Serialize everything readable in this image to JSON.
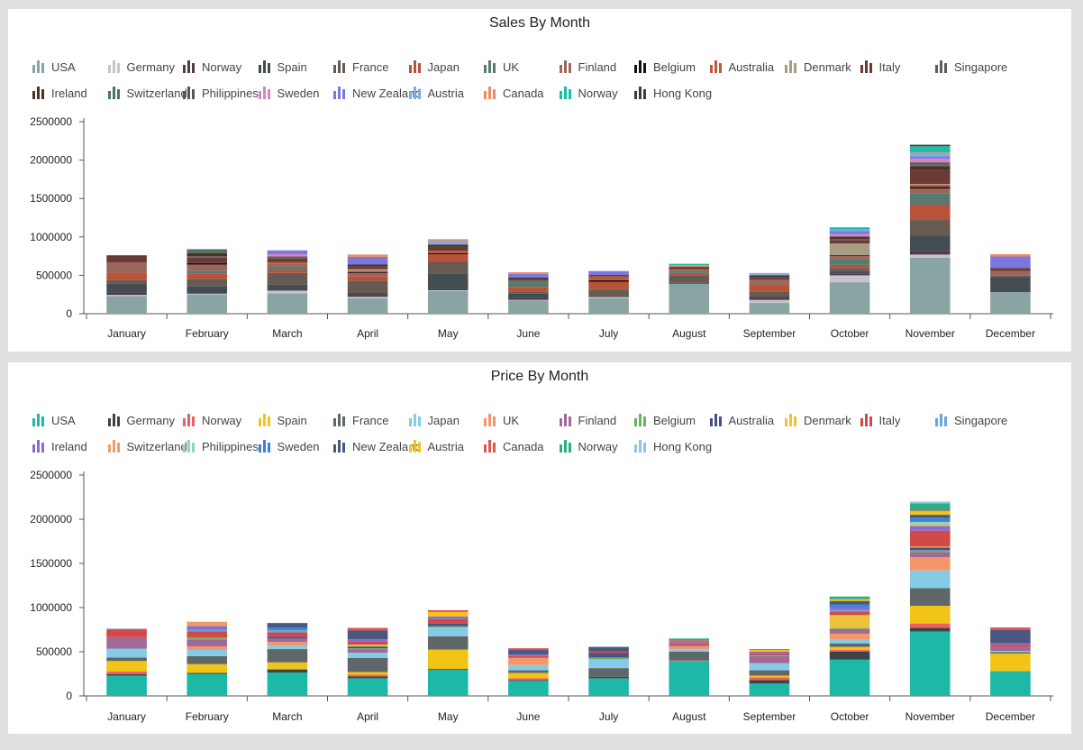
{
  "chart_data": [
    {
      "type": "bar",
      "stacked": true,
      "title": "Sales By Month",
      "xlabel": "",
      "ylabel": "",
      "ylim": [
        0,
        2500000
      ],
      "yticks": [
        "0",
        "500000",
        "1000000",
        "1500000",
        "2000000",
        "2500000"
      ],
      "grid": false,
      "legend": "top",
      "categories": [
        "January",
        "February",
        "March",
        "April",
        "May",
        "June",
        "July",
        "August",
        "September",
        "October",
        "November",
        "December"
      ],
      "series": [
        {
          "name": "USA",
          "color": "#8aa4a4",
          "values": [
            230000,
            250000,
            265000,
            200000,
            295000,
            170000,
            200000,
            390000,
            140000,
            410000,
            730000,
            280000
          ]
        },
        {
          "name": "Germany",
          "color": "#c9c2cc",
          "values": [
            15000,
            10000,
            35000,
            20000,
            10000,
            10000,
            15000,
            0,
            40000,
            90000,
            40000,
            0
          ]
        },
        {
          "name": "Norway",
          "color": "#4f3a48",
          "values": [
            30000,
            0,
            0,
            20000,
            0,
            20000,
            0,
            10000,
            30000,
            20000,
            50000,
            0
          ]
        },
        {
          "name": "Spain",
          "color": "#434d51",
          "values": [
            120000,
            100000,
            80000,
            30000,
            220000,
            60000,
            0,
            0,
            20000,
            35000,
            200000,
            200000
          ]
        },
        {
          "name": "France",
          "color": "#655b53",
          "values": [
            40000,
            90000,
            150000,
            160000,
            150000,
            30000,
            100000,
            100000,
            60000,
            40000,
            200000,
            15000
          ]
        },
        {
          "name": "Japan",
          "color": "#b9523b",
          "values": [
            100000,
            70000,
            40000,
            60000,
            100000,
            60000,
            100000,
            30000,
            80000,
            40000,
            200000,
            15000
          ]
        },
        {
          "name": "UK",
          "color": "#567a72",
          "values": [
            0,
            40000,
            40000,
            0,
            0,
            80000,
            0,
            30000,
            0,
            70000,
            150000,
            0
          ]
        },
        {
          "name": "Finland",
          "color": "#99685a",
          "values": [
            130000,
            80000,
            40000,
            40000,
            0,
            0,
            0,
            20000,
            80000,
            50000,
            60000,
            45000
          ]
        },
        {
          "name": "Belgium",
          "color": "#111111",
          "values": [
            0,
            20000,
            0,
            10000,
            15000,
            0,
            20000,
            0,
            10000,
            10000,
            20000,
            0
          ]
        },
        {
          "name": "Australia",
          "color": "#bc5a3a",
          "values": [
            0,
            0,
            20000,
            20000,
            30000,
            0,
            50000,
            0,
            0,
            0,
            30000,
            0
          ]
        },
        {
          "name": "Denmark",
          "color": "#a99c85",
          "values": [
            0,
            0,
            0,
            20000,
            0,
            0,
            0,
            0,
            0,
            150000,
            10000,
            0
          ]
        },
        {
          "name": "Italy",
          "color": "#6b3a34",
          "values": [
            80000,
            70000,
            50000,
            40000,
            50000,
            20000,
            20000,
            20000,
            20000,
            40000,
            180000,
            25000
          ]
        },
        {
          "name": "Singapore",
          "color": "#635c59",
          "values": [
            0,
            20000,
            25000,
            0,
            0,
            0,
            0,
            0,
            0,
            20000,
            0,
            0
          ]
        },
        {
          "name": "Ireland",
          "color": "#4b3026",
          "values": [
            15000,
            40000,
            0,
            20000,
            30000,
            20000,
            0,
            10000,
            20000,
            30000,
            50000,
            15000
          ]
        },
        {
          "name": "Switzerland",
          "color": "#4f7365",
          "values": [
            0,
            50000,
            0,
            0,
            0,
            0,
            0,
            0,
            0,
            0,
            20000,
            0
          ]
        },
        {
          "name": "Philippines",
          "color": "#5d5449",
          "values": [
            0,
            0,
            0,
            0,
            0,
            0,
            0,
            0,
            0,
            0,
            30000,
            0
          ]
        },
        {
          "name": "Sweden",
          "color": "#d685c2",
          "values": [
            0,
            0,
            30000,
            0,
            0,
            0,
            0,
            0,
            0,
            30000,
            50000,
            0
          ]
        },
        {
          "name": "New Zealand",
          "color": "#7a78e0",
          "values": [
            0,
            0,
            50000,
            100000,
            0,
            50000,
            50000,
            0,
            0,
            40000,
            30000,
            150000
          ]
        },
        {
          "name": "Austria",
          "color": "#78aee0",
          "values": [
            0,
            0,
            0,
            0,
            50000,
            0,
            0,
            0,
            20000,
            20000,
            40000,
            0
          ]
        },
        {
          "name": "Canada",
          "color": "#ef8a62",
          "values": [
            0,
            0,
            0,
            30000,
            20000,
            20000,
            0,
            20000,
            10000,
            0,
            10000,
            30000
          ]
        },
        {
          "name": "Norway",
          "color": "#19bfa8",
          "values": [
            0,
            0,
            0,
            0,
            0,
            0,
            0,
            20000,
            0,
            30000,
            80000,
            0
          ]
        },
        {
          "name": "Hong Kong",
          "color": "#3c3c3c",
          "values": [
            0,
            0,
            0,
            0,
            0,
            0,
            0,
            0,
            0,
            0,
            20000,
            0
          ]
        }
      ]
    },
    {
      "type": "bar",
      "stacked": true,
      "title": "Price By Month",
      "xlabel": "",
      "ylabel": "",
      "ylim": [
        0,
        2500000
      ],
      "yticks": [
        "0",
        "500000",
        "1000000",
        "1500000",
        "2000000",
        "2500000"
      ],
      "grid": false,
      "legend": "top",
      "categories": [
        "January",
        "February",
        "March",
        "April",
        "May",
        "June",
        "July",
        "August",
        "September",
        "October",
        "November",
        "December"
      ],
      "series": [
        {
          "name": "USA",
          "color": "#1db8a6",
          "values": [
            230000,
            250000,
            265000,
            200000,
            295000,
            170000,
            200000,
            390000,
            140000,
            410000,
            730000,
            280000
          ]
        },
        {
          "name": "Germany",
          "color": "#3d4448",
          "values": [
            15000,
            10000,
            35000,
            20000,
            10000,
            10000,
            15000,
            0,
            40000,
            90000,
            40000,
            0
          ]
        },
        {
          "name": "Norway",
          "color": "#ef5e60",
          "values": [
            30000,
            0,
            0,
            20000,
            0,
            20000,
            0,
            10000,
            30000,
            20000,
            50000,
            0
          ]
        },
        {
          "name": "Spain",
          "color": "#f2c416",
          "values": [
            120000,
            100000,
            80000,
            30000,
            220000,
            60000,
            0,
            0,
            20000,
            35000,
            200000,
            200000
          ]
        },
        {
          "name": "France",
          "color": "#5f6769",
          "values": [
            40000,
            90000,
            150000,
            160000,
            150000,
            30000,
            100000,
            100000,
            60000,
            40000,
            200000,
            15000
          ]
        },
        {
          "name": "Japan",
          "color": "#86cbe6",
          "values": [
            100000,
            70000,
            40000,
            60000,
            100000,
            60000,
            100000,
            30000,
            80000,
            40000,
            200000,
            15000
          ]
        },
        {
          "name": "UK",
          "color": "#f5966a",
          "values": [
            0,
            40000,
            40000,
            0,
            0,
            80000,
            0,
            30000,
            0,
            70000,
            150000,
            0
          ]
        },
        {
          "name": "Finland",
          "color": "#a06998",
          "values": [
            130000,
            80000,
            40000,
            40000,
            0,
            0,
            0,
            20000,
            80000,
            50000,
            60000,
            45000
          ]
        },
        {
          "name": "Belgium",
          "color": "#6eb164",
          "values": [
            0,
            20000,
            0,
            10000,
            15000,
            0,
            20000,
            0,
            10000,
            10000,
            20000,
            0
          ]
        },
        {
          "name": "Australia",
          "color": "#45508c",
          "values": [
            0,
            0,
            20000,
            20000,
            30000,
            0,
            50000,
            0,
            0,
            0,
            30000,
            0
          ]
        },
        {
          "name": "Denmark",
          "color": "#ecc23a",
          "values": [
            0,
            0,
            0,
            20000,
            0,
            0,
            0,
            0,
            0,
            150000,
            10000,
            0
          ]
        },
        {
          "name": "Italy",
          "color": "#d24a47",
          "values": [
            80000,
            70000,
            50000,
            40000,
            50000,
            20000,
            20000,
            20000,
            20000,
            40000,
            180000,
            25000
          ]
        },
        {
          "name": "Singapore",
          "color": "#68a6dc",
          "values": [
            0,
            20000,
            25000,
            0,
            0,
            0,
            0,
            0,
            0,
            20000,
            0,
            0
          ]
        },
        {
          "name": "Ireland",
          "color": "#8a6bd0",
          "values": [
            15000,
            40000,
            0,
            20000,
            30000,
            20000,
            0,
            10000,
            20000,
            30000,
            50000,
            15000
          ]
        },
        {
          "name": "Switzerland",
          "color": "#ec9f64",
          "values": [
            0,
            50000,
            0,
            0,
            0,
            0,
            0,
            0,
            0,
            0,
            20000,
            0
          ]
        },
        {
          "name": "Philippines",
          "color": "#8fd8b2",
          "values": [
            0,
            0,
            0,
            0,
            0,
            0,
            0,
            0,
            0,
            0,
            30000,
            0
          ]
        },
        {
          "name": "Sweden",
          "color": "#3e84d6",
          "values": [
            0,
            0,
            30000,
            0,
            0,
            0,
            0,
            0,
            0,
            30000,
            50000,
            0
          ]
        },
        {
          "name": "New Zealand",
          "color": "#4a5880",
          "values": [
            0,
            0,
            50000,
            100000,
            0,
            50000,
            50000,
            0,
            0,
            40000,
            30000,
            150000
          ]
        },
        {
          "name": "Austria",
          "color": "#f2c416",
          "values": [
            0,
            0,
            0,
            0,
            50000,
            0,
            0,
            0,
            20000,
            20000,
            40000,
            0
          ]
        },
        {
          "name": "Canada",
          "color": "#df5656",
          "values": [
            0,
            0,
            0,
            30000,
            20000,
            20000,
            0,
            20000,
            10000,
            0,
            10000,
            30000
          ]
        },
        {
          "name": "Norway",
          "color": "#2eaf7a",
          "values": [
            0,
            0,
            0,
            0,
            0,
            0,
            0,
            20000,
            0,
            30000,
            80000,
            0
          ]
        },
        {
          "name": "Hong Kong",
          "color": "#8cc7e8",
          "values": [
            0,
            0,
            0,
            0,
            0,
            0,
            0,
            0,
            0,
            0,
            20000,
            0
          ]
        }
      ]
    }
  ]
}
